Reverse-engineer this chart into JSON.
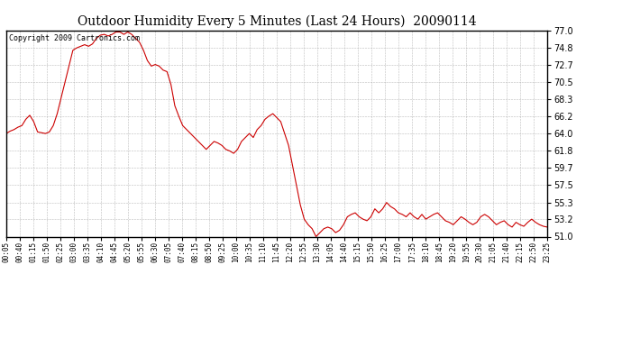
{
  "title": "Outdoor Humidity Every 5 Minutes (Last 24 Hours)  20090114",
  "copyright": "Copyright 2009 Cartronics.com",
  "line_color": "#cc0000",
  "background_color": "#ffffff",
  "grid_color": "#aaaaaa",
  "ylim": [
    51.0,
    77.0
  ],
  "yticks": [
    51.0,
    53.2,
    55.3,
    57.5,
    59.7,
    61.8,
    64.0,
    66.2,
    68.3,
    70.5,
    72.7,
    74.8,
    77.0
  ],
  "xtick_labels": [
    "00:05",
    "00:40",
    "01:15",
    "01:50",
    "02:25",
    "03:00",
    "03:35",
    "04:10",
    "04:45",
    "05:20",
    "05:55",
    "06:30",
    "07:05",
    "07:40",
    "08:15",
    "08:50",
    "09:25",
    "10:00",
    "10:35",
    "11:10",
    "11:45",
    "12:20",
    "12:55",
    "13:30",
    "14:05",
    "14:40",
    "15:15",
    "15:50",
    "16:25",
    "17:00",
    "17:35",
    "18:10",
    "18:45",
    "19:20",
    "19:55",
    "20:30",
    "21:05",
    "21:40",
    "22:15",
    "22:50",
    "23:25"
  ],
  "humidity_values": [
    64.0,
    64.3,
    64.5,
    64.8,
    65.0,
    65.8,
    66.3,
    65.5,
    64.2,
    64.1,
    64.0,
    64.2,
    65.0,
    66.5,
    68.5,
    70.5,
    72.5,
    74.5,
    74.8,
    75.0,
    75.2,
    75.0,
    75.3,
    76.0,
    76.4,
    76.5,
    76.3,
    76.5,
    76.8,
    76.8,
    76.5,
    76.8,
    76.5,
    76.0,
    75.5,
    74.5,
    73.2,
    72.5,
    72.7,
    72.5,
    72.0,
    71.8,
    70.2,
    67.5,
    66.2,
    65.0,
    64.5,
    64.0,
    63.5,
    63.0,
    62.5,
    62.0,
    62.5,
    63.0,
    62.8,
    62.5,
    62.0,
    61.8,
    61.5,
    62.0,
    63.0,
    63.5,
    64.0,
    63.5,
    64.5,
    65.0,
    65.8,
    66.2,
    66.5,
    66.0,
    65.5,
    64.0,
    62.5,
    60.0,
    57.5,
    55.0,
    53.2,
    52.5,
    52.0,
    51.0,
    51.5,
    52.0,
    52.2,
    52.0,
    51.5,
    51.8,
    52.5,
    53.5,
    53.8,
    54.0,
    53.5,
    53.2,
    53.0,
    53.5,
    54.5,
    54.0,
    54.5,
    55.3,
    54.8,
    54.5,
    54.0,
    53.8,
    53.5,
    54.0,
    53.5,
    53.2,
    53.8,
    53.2,
    53.5,
    53.8,
    54.0,
    53.5,
    53.0,
    52.8,
    52.5,
    53.0,
    53.5,
    53.2,
    52.8,
    52.5,
    52.8,
    53.5,
    53.8,
    53.5,
    53.0,
    52.5,
    52.8,
    53.0,
    52.5,
    52.2,
    52.8,
    52.5,
    52.3,
    52.8,
    53.2,
    52.8,
    52.5,
    52.3,
    52.2
  ]
}
